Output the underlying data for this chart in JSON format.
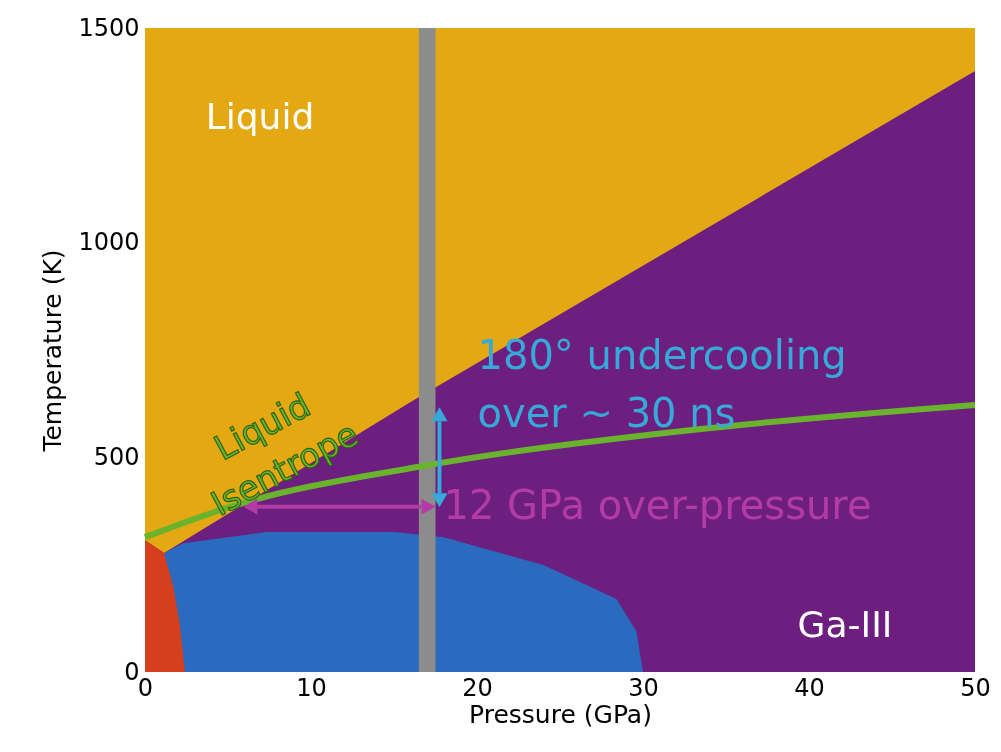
{
  "chart_data": {
    "type": "area",
    "xlabel": "Pressure (GPa)",
    "ylabel": "Temperature (K)",
    "xlim": [
      0,
      50
    ],
    "xticks": [
      0,
      10,
      20,
      30,
      40,
      50
    ],
    "ylim": [
      0,
      1500
    ],
    "yticks": [
      0,
      500,
      1000,
      1500
    ],
    "grid": false,
    "series": [
      {
        "name": "Ga-III",
        "color": "#6d1f80",
        "x": [
          0,
          1.15,
          16,
          50
        ],
        "values": [
          307,
          277,
          629,
          1400
        ]
      },
      {
        "color": "#2a6bbf",
        "x": [
          1.15,
          2.3,
          7.3,
          15,
          18,
          24,
          28.4,
          29.6,
          30
        ],
        "values": [
          277,
          300,
          326,
          326,
          314,
          249,
          170,
          95,
          0
        ]
      },
      {
        "color": "#d63f1e",
        "x": [
          0,
          1.15,
          1.7,
          2.1,
          2.4
        ],
        "values": [
          307,
          277,
          200,
          110,
          0
        ]
      },
      {
        "name": "Liquid Isentrope",
        "type": "line",
        "color": "#6ab42d",
        "x": [
          0,
          5.5,
          16.5,
          32.8,
          50
        ],
        "values": [
          314,
          389,
          478,
          563,
          622
        ]
      }
    ],
    "bands": [
      {
        "axis": "y",
        "from": 0,
        "to": 1500,
        "color": "#e4a812",
        "label": "Liquid"
      },
      {
        "axis": "x",
        "from": 16.5,
        "to": 17.5,
        "color": "#8c8c8c"
      }
    ],
    "annotations": [
      {
        "text": "180° undercooling over ~ 30 ns",
        "x": 17.5,
        "y": 570
      },
      {
        "text": "12 GPa over-pressure",
        "x": 17.5,
        "y": 385
      }
    ]
  }
}
